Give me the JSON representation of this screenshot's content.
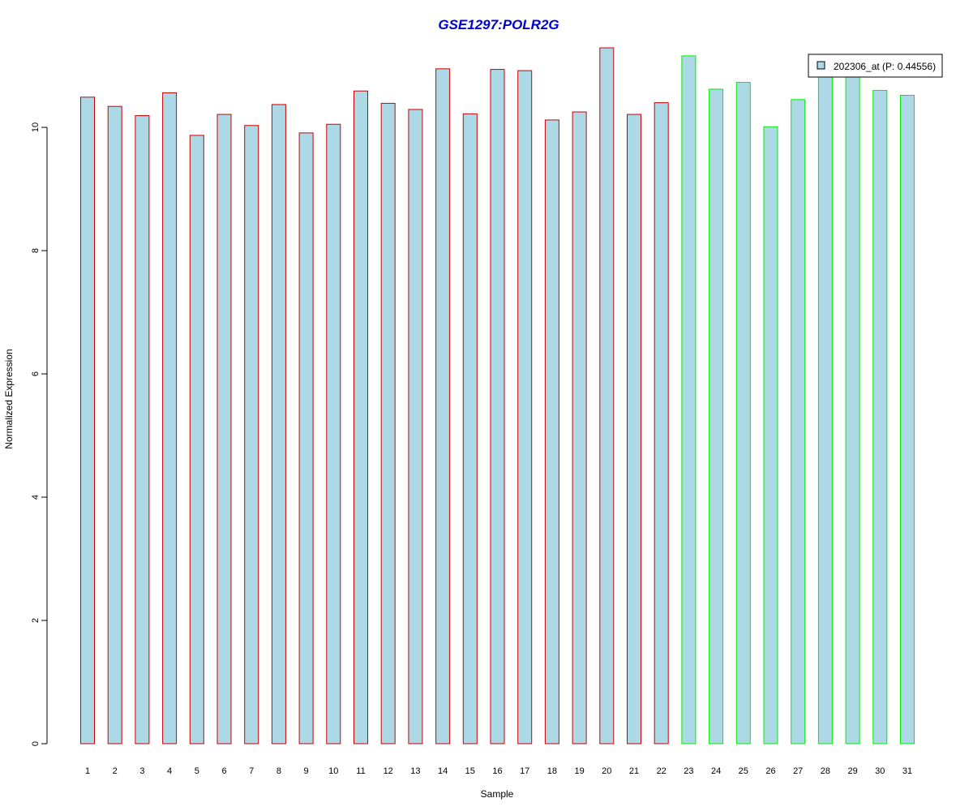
{
  "chart_data": {
    "type": "bar",
    "title": "GSE1297:POLR2G",
    "xlabel": "Sample",
    "ylabel": "Normalized Expression",
    "categories": [
      "1",
      "2",
      "3",
      "4",
      "5",
      "6",
      "7",
      "8",
      "9",
      "10",
      "11",
      "12",
      "13",
      "14",
      "15",
      "16",
      "17",
      "18",
      "19",
      "20",
      "21",
      "22",
      "23",
      "24",
      "25",
      "26",
      "27",
      "28",
      "29",
      "30",
      "31"
    ],
    "series": [
      {
        "name": "202306_at (P: 0.44556)",
        "values": [
          10.49,
          10.34,
          10.19,
          10.56,
          9.87,
          10.21,
          10.03,
          10.37,
          9.91,
          10.05,
          10.59,
          10.39,
          10.29,
          10.95,
          10.22,
          10.94,
          10.92,
          10.12,
          10.25,
          11.29,
          10.21,
          10.4,
          11.16,
          10.62,
          10.73,
          10.01,
          10.45,
          10.96,
          10.96,
          10.6,
          10.52
        ]
      }
    ],
    "ylim": [
      0,
      11.29
    ],
    "yticks": [
      "0",
      "2",
      "4",
      "6",
      "8",
      "10"
    ],
    "legend_position": "top-right",
    "colors": {
      "title": "#0000cc",
      "bar_fill": "#add8e6",
      "group1_border": "#cc0000",
      "group2_border": "#00ee00",
      "axis": "#000000"
    },
    "group1_count": 22
  }
}
